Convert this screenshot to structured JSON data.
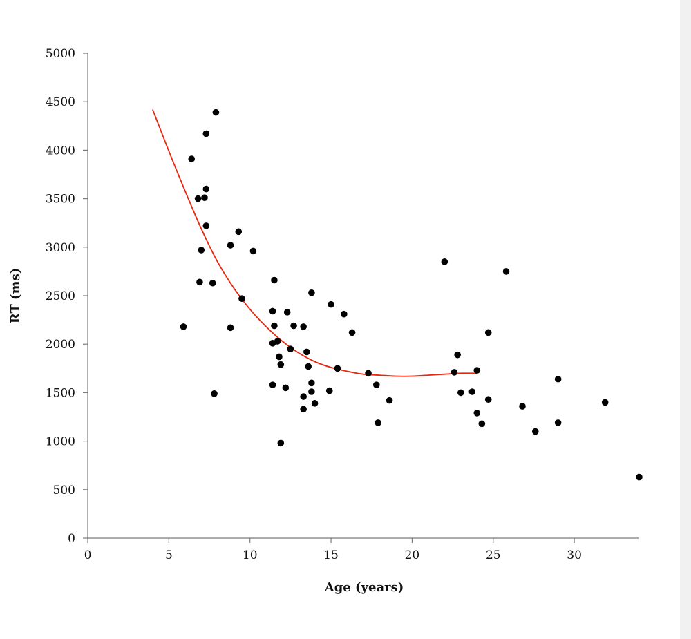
{
  "chart_data": {
    "type": "scatter",
    "xlabel": "Age (years)",
    "ylabel": "RT (ms)",
    "xlim": [
      0,
      34
    ],
    "ylim": [
      0,
      5000
    ],
    "xticks": [
      0,
      5,
      10,
      15,
      20,
      25,
      30
    ],
    "yticks": [
      0,
      500,
      1000,
      1500,
      2000,
      2500,
      3000,
      3500,
      4000,
      4500,
      5000
    ],
    "grid": false,
    "legend": "none",
    "colors": {
      "points": "#000000",
      "trend": "#e8270f",
      "axis": "#7a7a7a"
    },
    "points": [
      {
        "x": 5.9,
        "y": 2180
      },
      {
        "x": 6.4,
        "y": 3910
      },
      {
        "x": 6.8,
        "y": 3500
      },
      {
        "x": 6.9,
        "y": 2640
      },
      {
        "x": 7.0,
        "y": 2970
      },
      {
        "x": 7.2,
        "y": 3510
      },
      {
        "x": 7.3,
        "y": 4170
      },
      {
        "x": 7.3,
        "y": 3600
      },
      {
        "x": 7.3,
        "y": 3220
      },
      {
        "x": 7.7,
        "y": 2630
      },
      {
        "x": 7.8,
        "y": 1490
      },
      {
        "x": 7.9,
        "y": 4390
      },
      {
        "x": 8.8,
        "y": 3020
      },
      {
        "x": 8.8,
        "y": 2170
      },
      {
        "x": 9.3,
        "y": 3160
      },
      {
        "x": 9.5,
        "y": 2470
      },
      {
        "x": 10.2,
        "y": 2960
      },
      {
        "x": 11.4,
        "y": 2340
      },
      {
        "x": 11.4,
        "y": 2010
      },
      {
        "x": 11.4,
        "y": 1580
      },
      {
        "x": 11.5,
        "y": 2660
      },
      {
        "x": 11.5,
        "y": 2190
      },
      {
        "x": 11.7,
        "y": 2030
      },
      {
        "x": 11.8,
        "y": 1870
      },
      {
        "x": 11.9,
        "y": 1790
      },
      {
        "x": 11.9,
        "y": 980
      },
      {
        "x": 12.2,
        "y": 1550
      },
      {
        "x": 12.3,
        "y": 2330
      },
      {
        "x": 12.5,
        "y": 1950
      },
      {
        "x": 12.7,
        "y": 2190
      },
      {
        "x": 13.3,
        "y": 2180
      },
      {
        "x": 13.3,
        "y": 1460
      },
      {
        "x": 13.3,
        "y": 1330
      },
      {
        "x": 13.5,
        "y": 1920
      },
      {
        "x": 13.6,
        "y": 1770
      },
      {
        "x": 13.8,
        "y": 2530
      },
      {
        "x": 13.8,
        "y": 1600
      },
      {
        "x": 13.8,
        "y": 1510
      },
      {
        "x": 14.0,
        "y": 1390
      },
      {
        "x": 14.9,
        "y": 1520
      },
      {
        "x": 15.0,
        "y": 2410
      },
      {
        "x": 15.4,
        "y": 1750
      },
      {
        "x": 15.8,
        "y": 2310
      },
      {
        "x": 16.3,
        "y": 2120
      },
      {
        "x": 17.3,
        "y": 1700
      },
      {
        "x": 17.8,
        "y": 1580
      },
      {
        "x": 17.9,
        "y": 1190
      },
      {
        "x": 18.6,
        "y": 1420
      },
      {
        "x": 22.0,
        "y": 2850
      },
      {
        "x": 22.6,
        "y": 1710
      },
      {
        "x": 22.8,
        "y": 1890
      },
      {
        "x": 23.0,
        "y": 1500
      },
      {
        "x": 23.7,
        "y": 1510
      },
      {
        "x": 24.0,
        "y": 1730
      },
      {
        "x": 24.0,
        "y": 1290
      },
      {
        "x": 24.3,
        "y": 1180
      },
      {
        "x": 24.7,
        "y": 2120
      },
      {
        "x": 24.7,
        "y": 1430
      },
      {
        "x": 25.8,
        "y": 2750
      },
      {
        "x": 26.8,
        "y": 1360
      },
      {
        "x": 27.6,
        "y": 1100
      },
      {
        "x": 29.0,
        "y": 1640
      },
      {
        "x": 29.0,
        "y": 1190
      },
      {
        "x": 31.9,
        "y": 1400
      },
      {
        "x": 34.0,
        "y": 630
      }
    ],
    "trendline": {
      "type": "polynomial",
      "x": [
        4,
        5,
        6,
        7,
        8,
        9,
        10,
        11,
        12,
        13,
        14,
        15,
        16,
        17,
        18,
        19,
        20,
        21,
        22,
        23,
        24
      ],
      "y": [
        4420,
        3990,
        3580,
        3190,
        2850,
        2580,
        2360,
        2180,
        2030,
        1910,
        1820,
        1760,
        1720,
        1690,
        1680,
        1670,
        1670,
        1680,
        1690,
        1700,
        1700
      ]
    }
  }
}
